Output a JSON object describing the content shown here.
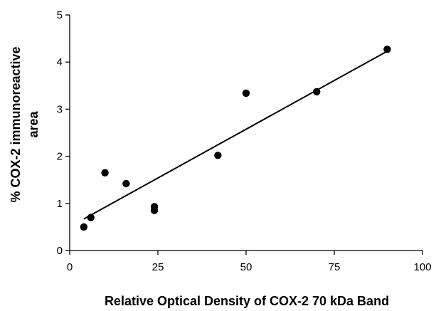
{
  "chart_data": {
    "type": "scatter",
    "xlabel": "Relative Optical Density of COX-2 70 kDa Band",
    "ylabel_line1": "% COX-2 immunoreactive",
    "ylabel_line2": "area",
    "xlim": [
      0,
      100
    ],
    "ylim": [
      0,
      5
    ],
    "x_ticks": [
      0,
      25,
      50,
      75,
      100
    ],
    "y_ticks": [
      0,
      1,
      2,
      3,
      4,
      5
    ],
    "grid": false,
    "points": [
      {
        "x": 4,
        "y": 0.5
      },
      {
        "x": 6,
        "y": 0.7
      },
      {
        "x": 10,
        "y": 1.65
      },
      {
        "x": 16,
        "y": 1.42
      },
      {
        "x": 24,
        "y": 0.93
      },
      {
        "x": 24,
        "y": 0.85
      },
      {
        "x": 42,
        "y": 2.02
      },
      {
        "x": 50,
        "y": 3.34
      },
      {
        "x": 70,
        "y": 3.37
      },
      {
        "x": 90,
        "y": 4.27
      }
    ],
    "regression_line": {
      "x": [
        4,
        90
      ],
      "y": [
        0.67,
        4.23
      ]
    },
    "colors": {
      "points": "#000000",
      "line": "#000000",
      "axes": "#000000"
    }
  }
}
